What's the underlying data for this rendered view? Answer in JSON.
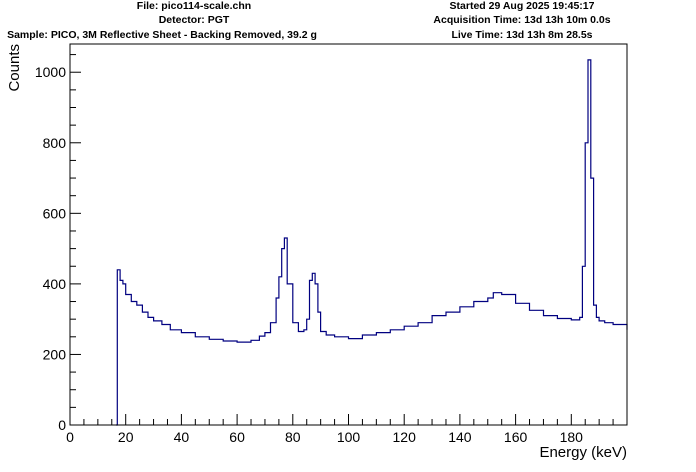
{
  "header": {
    "file": "File: pico114-scale.chn",
    "detector": "Detector: PGT",
    "sample": "Sample: PICO, 3M Reflective Sheet - Backing Removed, 39.2 g",
    "started": "Started 29 Aug 2025 19:45:17",
    "acquisition": "Acquisition Time: 13d 13h 10m 0.0s",
    "live": "Live Time: 13d 13h 8m 28.5s"
  },
  "chart_data": {
    "type": "line",
    "style": "histogram-step",
    "xlabel": "Energy (keV)",
    "ylabel": "Counts",
    "xlim": [
      0,
      200
    ],
    "ylim": [
      0,
      1080
    ],
    "xticks": [
      0,
      20,
      40,
      60,
      80,
      100,
      120,
      140,
      160,
      180
    ],
    "yticks": [
      0,
      200,
      400,
      600,
      800,
      1000
    ],
    "grid": false,
    "line_color": "#000080",
    "series": [
      {
        "x": [
          16.5,
          17,
          18,
          19,
          20,
          22,
          24,
          26,
          28,
          30,
          33,
          36,
          40,
          45,
          50,
          55,
          60,
          65,
          68,
          70,
          72,
          74,
          75,
          76,
          77,
          78,
          80,
          82,
          84,
          85,
          86,
          87,
          88,
          89,
          90,
          92,
          95,
          100,
          105,
          110,
          115,
          120,
          125,
          130,
          135,
          140,
          145,
          150,
          152,
          155,
          160,
          165,
          170,
          175,
          180,
          183,
          184,
          185,
          186,
          187,
          188,
          189,
          190,
          192,
          195,
          200
        ],
        "y": [
          0,
          440,
          410,
          400,
          370,
          350,
          340,
          320,
          305,
          295,
          285,
          270,
          262,
          250,
          243,
          238,
          235,
          240,
          252,
          262,
          290,
          360,
          420,
          500,
          530,
          400,
          290,
          265,
          270,
          300,
          410,
          430,
          400,
          320,
          265,
          255,
          250,
          245,
          255,
          262,
          270,
          280,
          290,
          310,
          320,
          335,
          350,
          360,
          375,
          370,
          345,
          325,
          310,
          302,
          298,
          305,
          450,
          800,
          1035,
          700,
          340,
          305,
          295,
          290,
          285,
          270
        ]
      }
    ]
  }
}
